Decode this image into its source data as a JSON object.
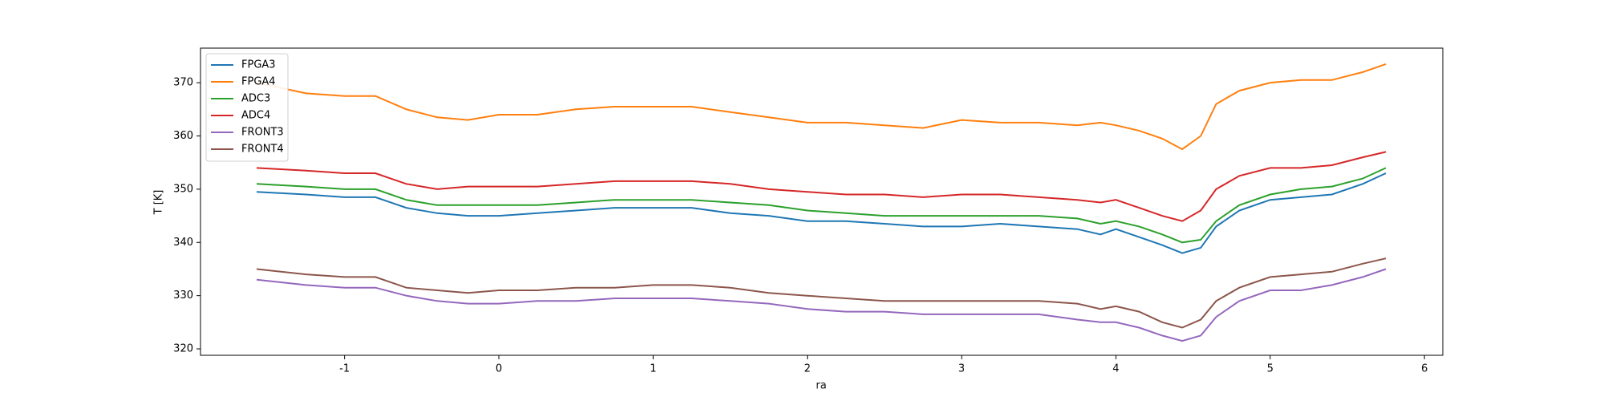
{
  "chart_data": {
    "type": "line",
    "xlabel": "ra",
    "ylabel": "T [K]",
    "x": [
      -1.57,
      -1.25,
      -1.0,
      -0.8,
      -0.6,
      -0.4,
      -0.2,
      0,
      0.25,
      0.5,
      0.75,
      1.0,
      1.25,
      1.5,
      1.75,
      2.0,
      2.25,
      2.5,
      2.75,
      3.0,
      3.25,
      3.5,
      3.75,
      3.9,
      4.0,
      4.15,
      4.3,
      4.43,
      4.55,
      4.65,
      4.8,
      5.0,
      5.2,
      5.4,
      5.6,
      5.75
    ],
    "series": [
      {
        "name": "FPGA3",
        "color": "#1f77b4",
        "values": [
          349.5,
          349,
          348.5,
          348.5,
          346.5,
          345.5,
          345,
          345,
          345.5,
          346,
          346.5,
          346.5,
          346.5,
          345.5,
          345,
          344,
          344,
          343.5,
          343,
          343,
          343.5,
          343,
          342.5,
          341.5,
          342.5,
          341,
          339.5,
          338,
          339,
          343,
          346,
          348,
          348.5,
          349,
          351,
          353
        ]
      },
      {
        "name": "FPGA4",
        "color": "#ff7f0e",
        "values": [
          370,
          368,
          367.5,
          367.5,
          365,
          363.5,
          363,
          364,
          364,
          365,
          365.5,
          365.5,
          365.5,
          364.5,
          363.5,
          362.5,
          362.5,
          362,
          361.5,
          363,
          362.5,
          362.5,
          362,
          362.5,
          362,
          361,
          359.5,
          357.5,
          360,
          366,
          368.5,
          370,
          370.5,
          370.5,
          372,
          373.5
        ]
      },
      {
        "name": "ADC3",
        "color": "#2ca02c",
        "values": [
          351,
          350.5,
          350,
          350,
          348,
          347,
          347,
          347,
          347,
          347.5,
          348,
          348,
          348,
          347.5,
          347,
          346,
          345.5,
          345,
          345,
          345,
          345,
          345,
          344.5,
          343.5,
          344,
          343,
          341.5,
          340,
          340.5,
          344,
          347,
          349,
          350,
          350.5,
          352,
          354
        ]
      },
      {
        "name": "ADC4",
        "color": "#d62728",
        "values": [
          354,
          353.5,
          353,
          353,
          351,
          350,
          350.5,
          350.5,
          350.5,
          351,
          351.5,
          351.5,
          351.5,
          351,
          350,
          349.5,
          349,
          349,
          348.5,
          349,
          349,
          348.5,
          348,
          347.5,
          348,
          346.5,
          345,
          344,
          346,
          350,
          352.5,
          354,
          354,
          354.5,
          356,
          357
        ]
      },
      {
        "name": "FRONT3",
        "color": "#9467bd",
        "values": [
          333,
          332,
          331.5,
          331.5,
          330,
          329,
          328.5,
          328.5,
          329,
          329,
          329.5,
          329.5,
          329.5,
          329,
          328.5,
          327.5,
          327,
          327,
          326.5,
          326.5,
          326.5,
          326.5,
          325.5,
          325,
          325,
          324,
          322.5,
          321.5,
          322.5,
          326,
          329,
          331,
          331,
          332,
          333.5,
          335
        ]
      },
      {
        "name": "FRONT4",
        "color": "#8c564b",
        "values": [
          335,
          334,
          333.5,
          333.5,
          331.5,
          331,
          330.5,
          331,
          331,
          331.5,
          331.5,
          332,
          332,
          331.5,
          330.5,
          330,
          329.5,
          329,
          329,
          329,
          329,
          329,
          328.5,
          327.5,
          328,
          327,
          325,
          324,
          325.5,
          329,
          331.5,
          333.5,
          334,
          334.5,
          336,
          337
        ]
      }
    ],
    "xlim": [
      -1.934,
      6.119
    ],
    "ylim": [
      318.8,
      376.5
    ],
    "xticks": [
      -1,
      0,
      1,
      2,
      3,
      4,
      5,
      6
    ],
    "yticks": [
      320,
      330,
      340,
      350,
      360,
      370
    ],
    "legend": "upper-left"
  }
}
